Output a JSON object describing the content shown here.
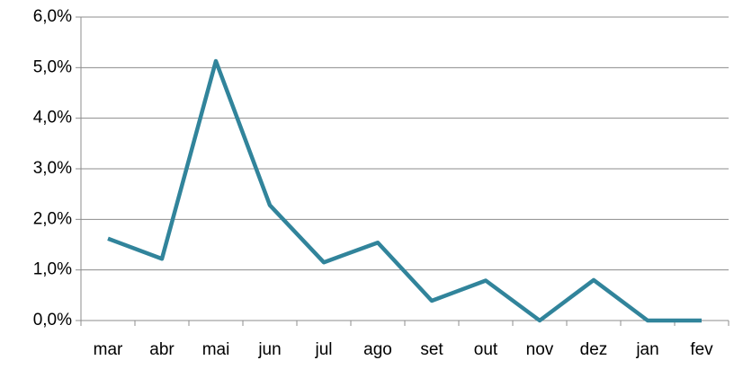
{
  "chart_data": {
    "type": "line",
    "categories": [
      "mar",
      "abr",
      "mai",
      "jun",
      "jul",
      "ago",
      "set",
      "out",
      "nov",
      "dez",
      "jan",
      "fev"
    ],
    "series": [
      {
        "color": "#31849b",
        "values": [
          1.62,
          1.22,
          5.13,
          2.28,
          1.15,
          1.54,
          0.39,
          0.79,
          0.0,
          0.8,
          0.0,
          0.0
        ]
      }
    ],
    "ylim": [
      0,
      6
    ],
    "yticks": [
      {
        "value": 0,
        "label": "0,0%"
      },
      {
        "value": 1,
        "label": "1,0%"
      },
      {
        "value": 2,
        "label": "2,0%"
      },
      {
        "value": 3,
        "label": "3,0%"
      },
      {
        "value": 4,
        "label": "4,0%"
      },
      {
        "value": 5,
        "label": "5,0%"
      },
      {
        "value": 6,
        "label": "6,0%"
      }
    ],
    "grid": true
  }
}
